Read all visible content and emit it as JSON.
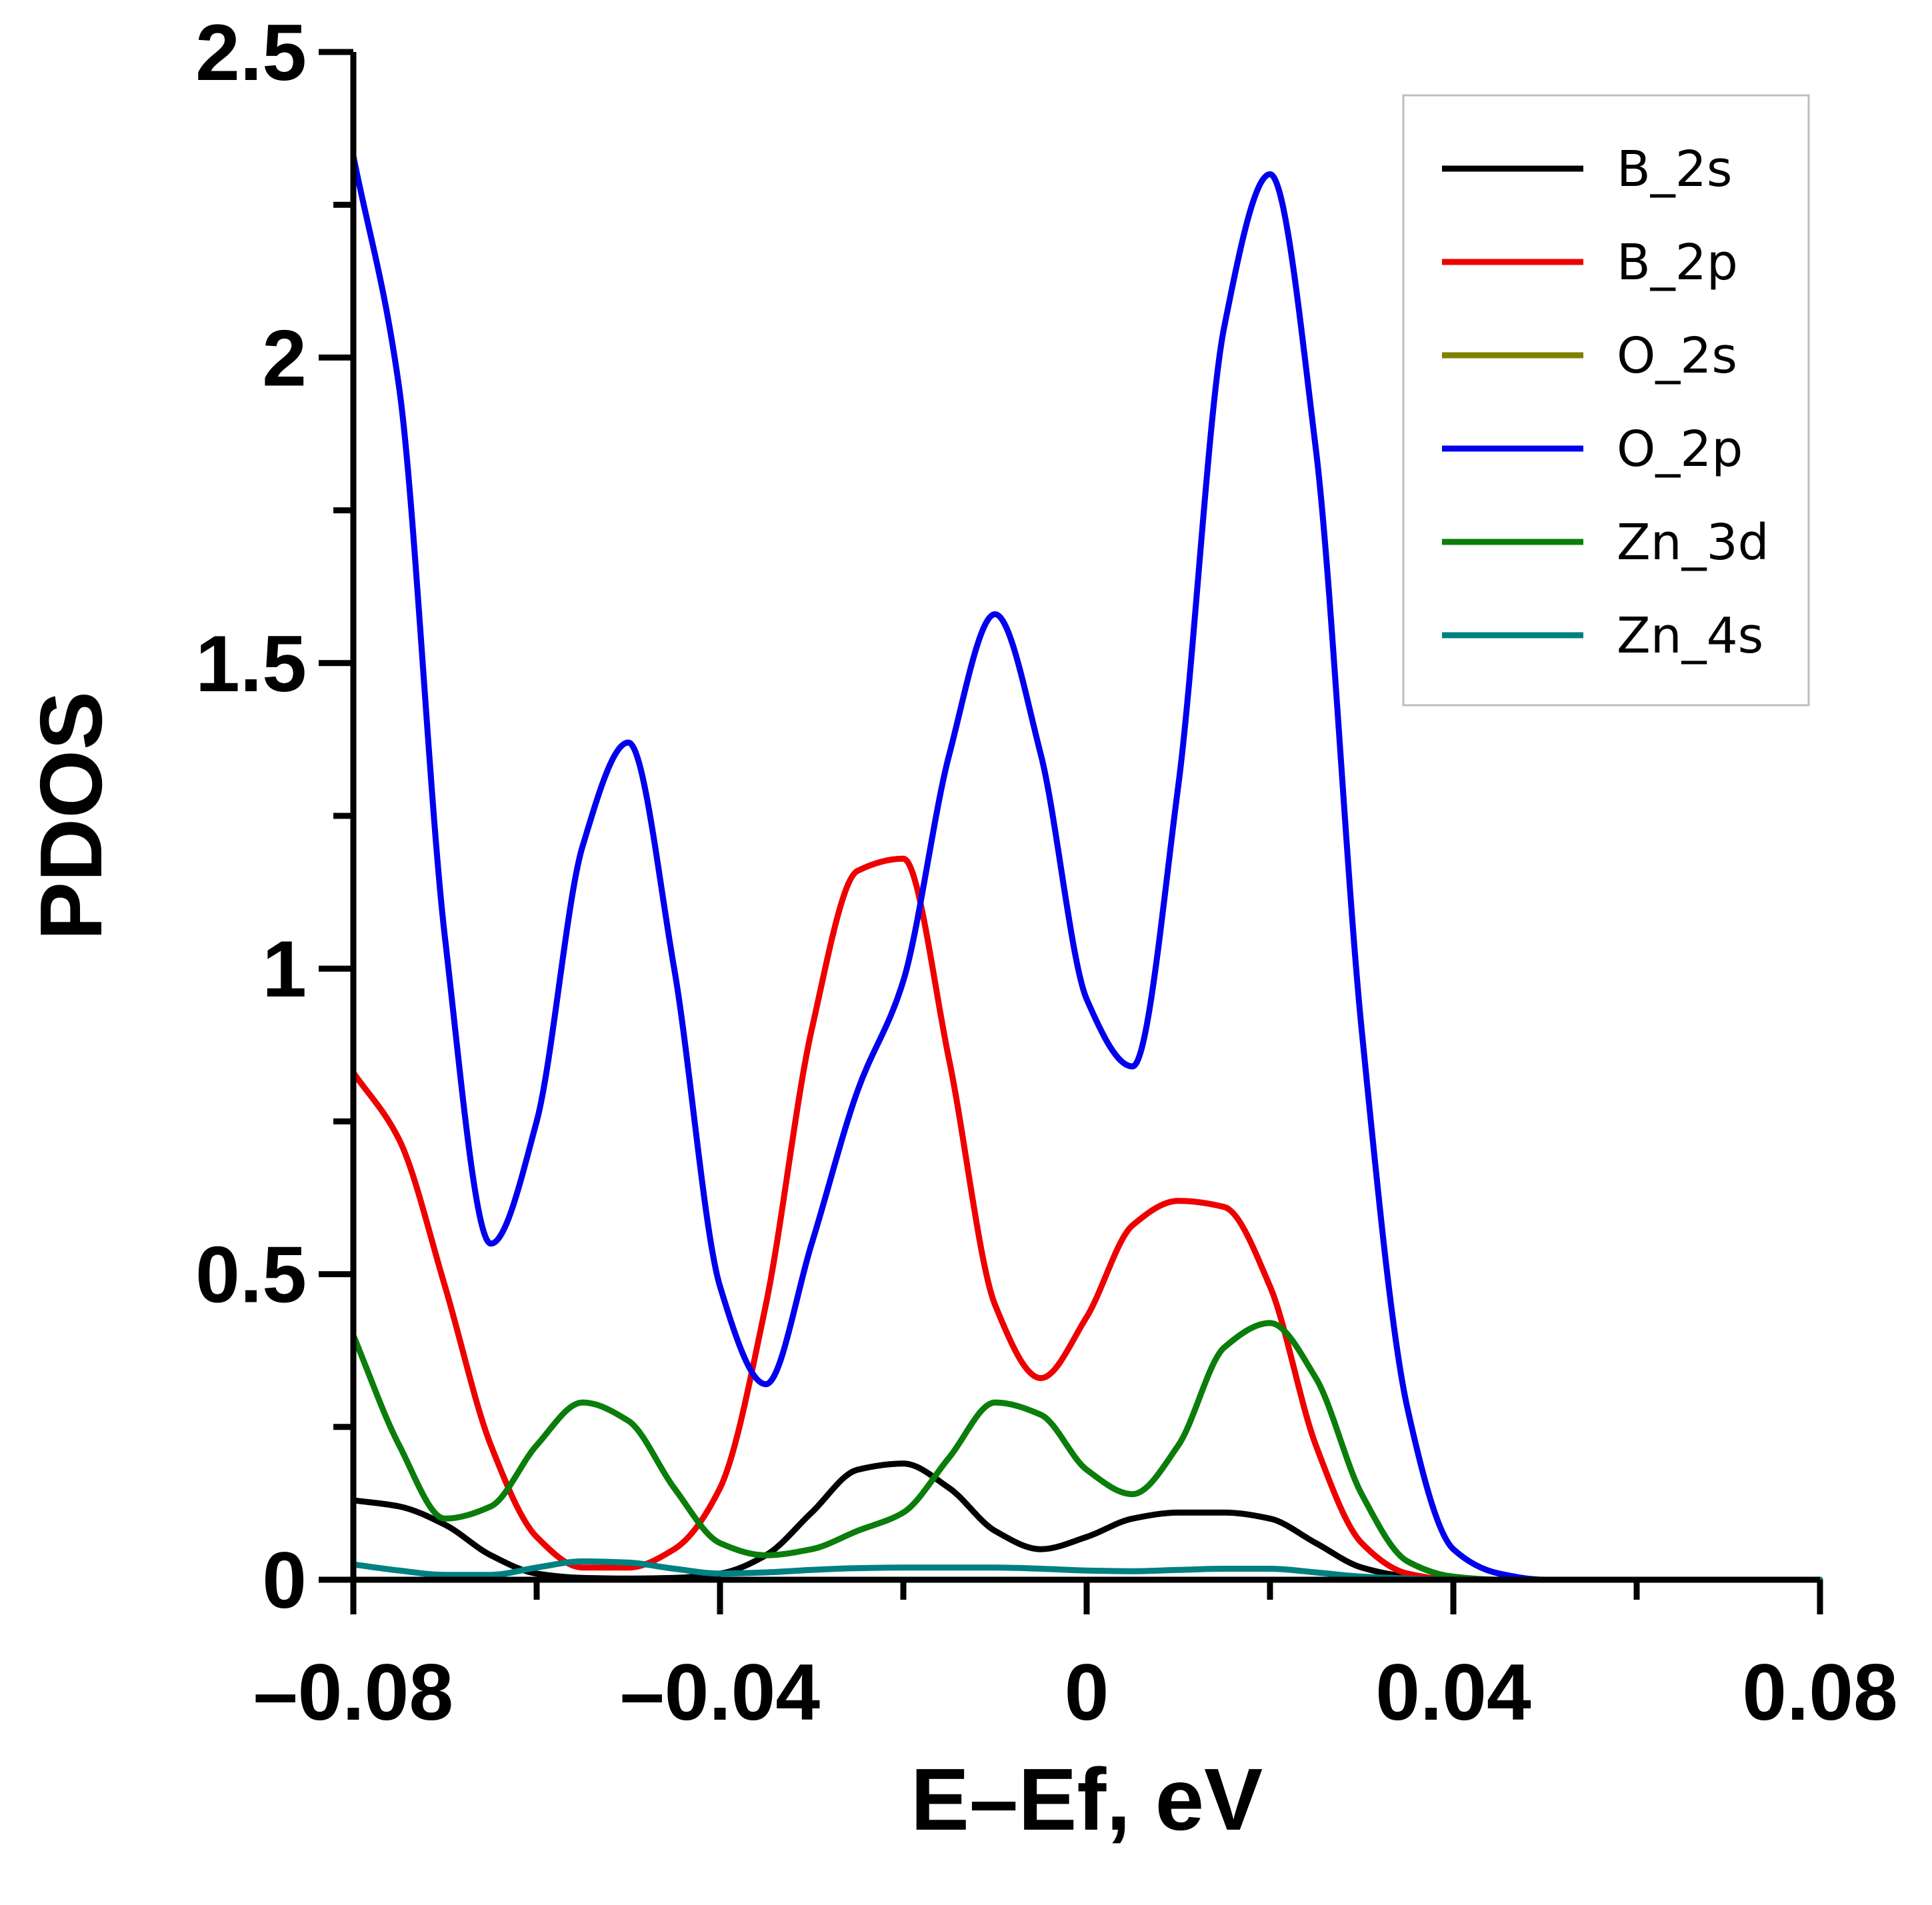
{
  "chart_data": {
    "type": "line",
    "xlabel": "E–Ef, eV",
    "ylabel": "PDOS",
    "xlim": [
      -0.08,
      0.08
    ],
    "ylim": [
      0,
      2.5
    ],
    "x_ticks": [
      -0.08,
      -0.04,
      0,
      0.04,
      0.08
    ],
    "x_tick_labels": [
      "–0.08",
      "–0.04",
      "0",
      "0.04",
      "0.08"
    ],
    "x_minor_ticks": [
      -0.06,
      -0.02,
      0.02,
      0.06
    ],
    "y_ticks": [
      0,
      0.5,
      1,
      1.5,
      2,
      2.5
    ],
    "y_tick_labels": [
      "0",
      "0.5",
      "1",
      "1.5",
      "2",
      "2.5"
    ],
    "y_minor_ticks": [
      0.25,
      0.75,
      1.25,
      1.75,
      2.25
    ],
    "legend_position": "top-right",
    "grid": false,
    "series": [
      {
        "name": "B_2s",
        "color": "#000000",
        "x": [
          -0.08,
          -0.075,
          -0.07,
          -0.065,
          -0.06,
          -0.055,
          -0.05,
          -0.045,
          -0.04,
          -0.035,
          -0.03,
          -0.025,
          -0.02,
          -0.015,
          -0.01,
          -0.005,
          0.0,
          0.005,
          0.01,
          0.015,
          0.02,
          0.025,
          0.03,
          0.035,
          0.04,
          0.045,
          0.05,
          0.06,
          0.07,
          0.08
        ],
        "y": [
          0.13,
          0.12,
          0.09,
          0.04,
          0.01,
          0.003,
          0.002,
          0.003,
          0.01,
          0.04,
          0.11,
          0.18,
          0.19,
          0.15,
          0.08,
          0.05,
          0.07,
          0.1,
          0.11,
          0.11,
          0.1,
          0.06,
          0.02,
          0.005,
          0.0,
          0.0,
          0.0,
          0.0,
          0.0,
          0.0
        ]
      },
      {
        "name": "B_2p",
        "color": "#ee0000",
        "x": [
          -0.08,
          -0.075,
          -0.07,
          -0.065,
          -0.06,
          -0.055,
          -0.05,
          -0.045,
          -0.04,
          -0.035,
          -0.03,
          -0.025,
          -0.02,
          -0.015,
          -0.01,
          -0.005,
          0.0,
          0.005,
          0.01,
          0.015,
          0.02,
          0.025,
          0.03,
          0.035,
          0.04,
          0.045,
          0.05,
          0.06,
          0.07,
          0.08
        ],
        "y": [
          0.83,
          0.72,
          0.48,
          0.22,
          0.07,
          0.02,
          0.02,
          0.05,
          0.15,
          0.45,
          0.9,
          1.16,
          1.18,
          0.85,
          0.45,
          0.33,
          0.43,
          0.58,
          0.62,
          0.61,
          0.48,
          0.22,
          0.06,
          0.01,
          0.0,
          0.0,
          0.0,
          0.0,
          0.0,
          0.0
        ]
      },
      {
        "name": "O_2s",
        "color": "#808000",
        "x": [
          -0.08,
          -0.04,
          0.0,
          0.04,
          0.08
        ],
        "y": [
          0.0,
          0.0,
          0.0,
          0.0,
          0.0
        ]
      },
      {
        "name": "O_2p",
        "color": "#0000ee",
        "x": [
          -0.08,
          -0.075,
          -0.07,
          -0.065,
          -0.06,
          -0.055,
          -0.05,
          -0.045,
          -0.04,
          -0.035,
          -0.03,
          -0.025,
          -0.02,
          -0.015,
          -0.01,
          -0.005,
          0.0,
          0.005,
          0.01,
          0.015,
          0.02,
          0.025,
          0.03,
          0.035,
          0.04,
          0.045,
          0.05,
          0.06,
          0.07,
          0.08
        ],
        "y": [
          2.33,
          1.95,
          1.05,
          0.55,
          0.75,
          1.2,
          1.37,
          1.0,
          0.48,
          0.32,
          0.55,
          0.8,
          0.98,
          1.35,
          1.58,
          1.35,
          0.95,
          0.84,
          1.3,
          2.05,
          2.3,
          1.85,
          0.9,
          0.28,
          0.05,
          0.01,
          0.0,
          0.0,
          0.0,
          0.0
        ]
      },
      {
        "name": "Zn_3d",
        "color": "#0a7d0a",
        "x": [
          -0.08,
          -0.075,
          -0.07,
          -0.065,
          -0.06,
          -0.055,
          -0.05,
          -0.045,
          -0.04,
          -0.035,
          -0.03,
          -0.025,
          -0.02,
          -0.015,
          -0.01,
          -0.005,
          0.0,
          0.005,
          0.01,
          0.015,
          0.02,
          0.025,
          0.03,
          0.035,
          0.04,
          0.045,
          0.05,
          0.06,
          0.07,
          0.08
        ],
        "y": [
          0.4,
          0.22,
          0.1,
          0.12,
          0.22,
          0.29,
          0.26,
          0.15,
          0.06,
          0.04,
          0.05,
          0.08,
          0.11,
          0.2,
          0.29,
          0.27,
          0.18,
          0.14,
          0.22,
          0.38,
          0.42,
          0.33,
          0.14,
          0.03,
          0.005,
          0.0,
          0.0,
          0.0,
          0.0,
          0.0
        ]
      },
      {
        "name": "Zn_4s",
        "color": "#008080",
        "x": [
          -0.08,
          -0.075,
          -0.07,
          -0.065,
          -0.06,
          -0.055,
          -0.05,
          -0.045,
          -0.04,
          -0.035,
          -0.03,
          -0.025,
          -0.02,
          -0.015,
          -0.01,
          -0.005,
          0.0,
          0.005,
          0.01,
          0.015,
          0.02,
          0.025,
          0.03,
          0.035,
          0.04,
          0.045,
          0.05,
          0.06,
          0.07,
          0.08
        ],
        "y": [
          0.025,
          0.015,
          0.008,
          0.008,
          0.02,
          0.03,
          0.028,
          0.018,
          0.01,
          0.012,
          0.016,
          0.019,
          0.02,
          0.02,
          0.02,
          0.018,
          0.015,
          0.014,
          0.016,
          0.018,
          0.018,
          0.012,
          0.005,
          0.002,
          0.0,
          0.0,
          0.0,
          0.0,
          0.0,
          0.0
        ]
      }
    ]
  }
}
